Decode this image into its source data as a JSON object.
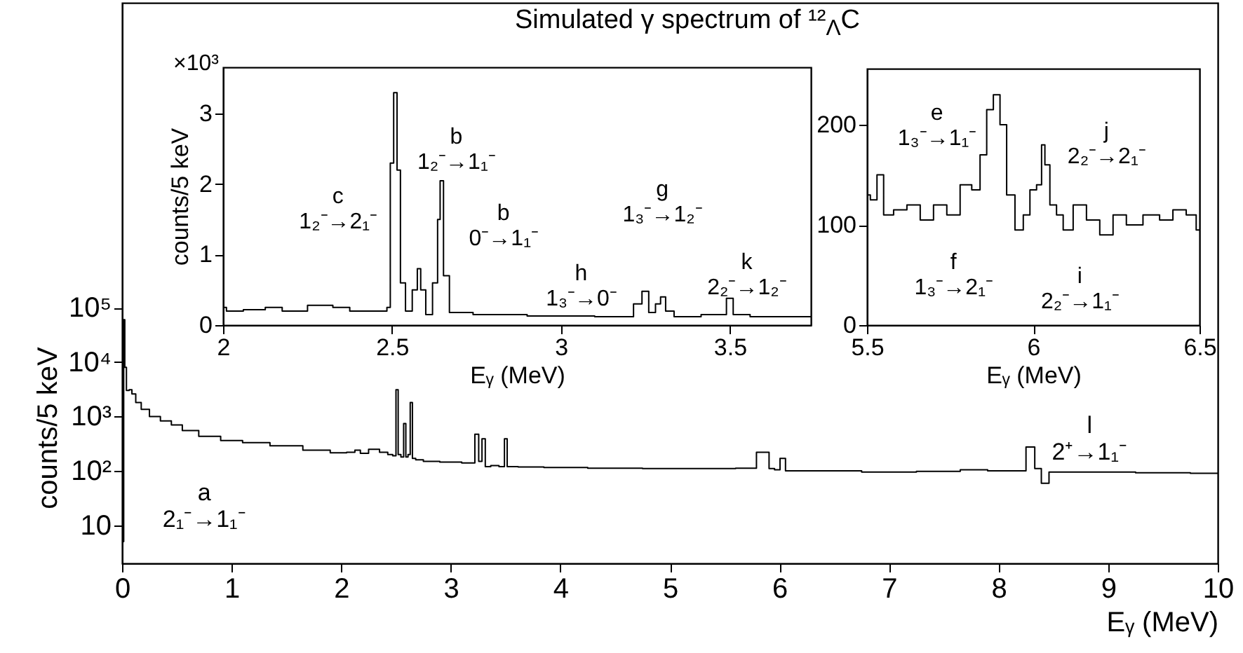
{
  "chart_data": [
    {
      "type": "step",
      "title": "Simulated γ spectrum of ¹²$_{Λ}$C",
      "xlabel": "Eᵧ (MeV)",
      "ylabel": "counts/5 keV",
      "color": "#000000",
      "log": "y",
      "xlim": [
        0,
        10
      ],
      "xticks": [
        0,
        1,
        2,
        3,
        4,
        5,
        6,
        7,
        8,
        9,
        10
      ],
      "ylim": [
        2,
        40000000000
      ],
      "yticks": [
        {
          "value": 10,
          "label": "10"
        },
        {
          "value": 100,
          "label": "10²"
        },
        {
          "value": 1000,
          "label": "10³"
        },
        {
          "value": 10000,
          "label": "10⁴"
        },
        {
          "value": 100000,
          "label": "10⁵"
        }
      ],
      "x": [
        0.01,
        0.02,
        0.03,
        0.05,
        0.08,
        0.1,
        0.15,
        0.2,
        0.3,
        0.4,
        0.5,
        0.6,
        0.8,
        1.0,
        1.2,
        1.5,
        1.8,
        2.0,
        2.1,
        2.15,
        2.2,
        2.3,
        2.4,
        2.45,
        2.49,
        2.51,
        2.53,
        2.56,
        2.58,
        2.6,
        2.62,
        2.64,
        2.66,
        2.7,
        2.8,
        3.0,
        3.2,
        3.24,
        3.27,
        3.3,
        3.33,
        3.4,
        3.48,
        3.5,
        3.53,
        3.7,
        4.0,
        4.5,
        5.0,
        5.5,
        5.7,
        5.88,
        5.93,
        5.98,
        6.03,
        6.08,
        6.5,
        7.0,
        7.5,
        7.8,
        8.0,
        8.2,
        8.3,
        8.36,
        8.42,
        8.5,
        9.0,
        9.5,
        10.0
      ],
      "values": [
        5,
        60000,
        8000,
        3000,
        3100,
        2600,
        1800,
        1350,
        1000,
        830,
        700,
        550,
        430,
        360,
        330,
        290,
        240,
        215,
        220,
        240,
        210,
        250,
        220,
        200,
        190,
        3100,
        200,
        180,
        740,
        180,
        200,
        1800,
        170,
        160,
        150,
        145,
        140,
        470,
        150,
        390,
        120,
        125,
        120,
        390,
        120,
        118,
        115,
        112,
        110,
        110,
        112,
        220,
        110,
        105,
        170,
        100,
        100,
        95,
        98,
        105,
        100,
        100,
        275,
        110,
        59,
        95,
        95,
        92,
        90
      ],
      "annotations": [
        "a\n2₁⁻→1₁⁻",
        "l\n2⁺→1₁⁻"
      ]
    },
    {
      "type": "step",
      "xlabel": "Eᵧ (MeV)",
      "ylabel": "counts/5 keV",
      "color": "#000000",
      "xlim": [
        2,
        3.74
      ],
      "xticks": [
        2,
        2.5,
        3,
        3.5
      ],
      "ylim": [
        0,
        3.66
      ],
      "yticks": [
        0,
        1,
        2,
        3
      ],
      "x": [
        2.0,
        2.02,
        2.1,
        2.15,
        2.2,
        2.3,
        2.35,
        2.4,
        2.48,
        2.49,
        2.5,
        2.51,
        2.52,
        2.53,
        2.55,
        2.57,
        2.58,
        2.59,
        2.61,
        2.63,
        2.64,
        2.645,
        2.66,
        2.68,
        2.8,
        3.0,
        3.2,
        3.23,
        3.25,
        3.27,
        3.29,
        3.3,
        3.32,
        3.35,
        3.48,
        3.5,
        3.52,
        3.6,
        3.74
      ],
      "values": [
        0.25,
        0.2,
        0.22,
        0.25,
        0.2,
        0.28,
        0.25,
        0.2,
        0.2,
        0.25,
        2.3,
        3.3,
        2.2,
        0.6,
        0.2,
        0.5,
        0.8,
        0.5,
        0.15,
        0.6,
        1.5,
        2.05,
        0.7,
        0.18,
        0.15,
        0.13,
        0.12,
        0.3,
        0.48,
        0.18,
        0.3,
        0.4,
        0.2,
        0.12,
        0.15,
        0.38,
        0.15,
        0.12,
        0.12
      ],
      "annotations": [
        "×10³",
        "c\n1₂⁻→2₁⁻",
        "b\n1₂⁻→1₁⁻",
        "b\n0⁻→1₁⁻",
        "h\n1₃⁻→0⁻",
        "g\n1₃⁻→1₂⁻",
        "k\n2₂⁻→1₂⁻"
      ]
    },
    {
      "type": "step",
      "xlabel": "Eᵧ (MeV)",
      "color": "#000000",
      "xlim": [
        5.5,
        6.5
      ],
      "xticks": [
        5.5,
        6,
        6.5
      ],
      "ylim": [
        0,
        256
      ],
      "yticks": [
        0,
        100,
        200
      ],
      "x": [
        5.5,
        5.52,
        5.54,
        5.56,
        5.6,
        5.64,
        5.68,
        5.72,
        5.76,
        5.8,
        5.83,
        5.85,
        5.87,
        5.89,
        5.91,
        5.93,
        5.96,
        5.98,
        6.0,
        6.02,
        6.03,
        6.04,
        6.06,
        6.08,
        6.1,
        6.14,
        6.18,
        6.22,
        6.26,
        6.3,
        6.36,
        6.4,
        6.44,
        6.48,
        6.5
      ],
      "values": [
        130,
        125,
        150,
        110,
        115,
        120,
        105,
        120,
        110,
        140,
        135,
        170,
        215,
        230,
        200,
        130,
        95,
        110,
        135,
        140,
        180,
        160,
        120,
        110,
        95,
        120,
        105,
        90,
        110,
        100,
        110,
        105,
        115,
        110,
        95
      ],
      "annotations": [
        "e\n1₃⁻→1₁⁻",
        "j\n2₂⁻→2₁⁻",
        "f\n1₃⁻→2₁⁻",
        "i\n2₂⁻→1₁⁻"
      ]
    }
  ]
}
